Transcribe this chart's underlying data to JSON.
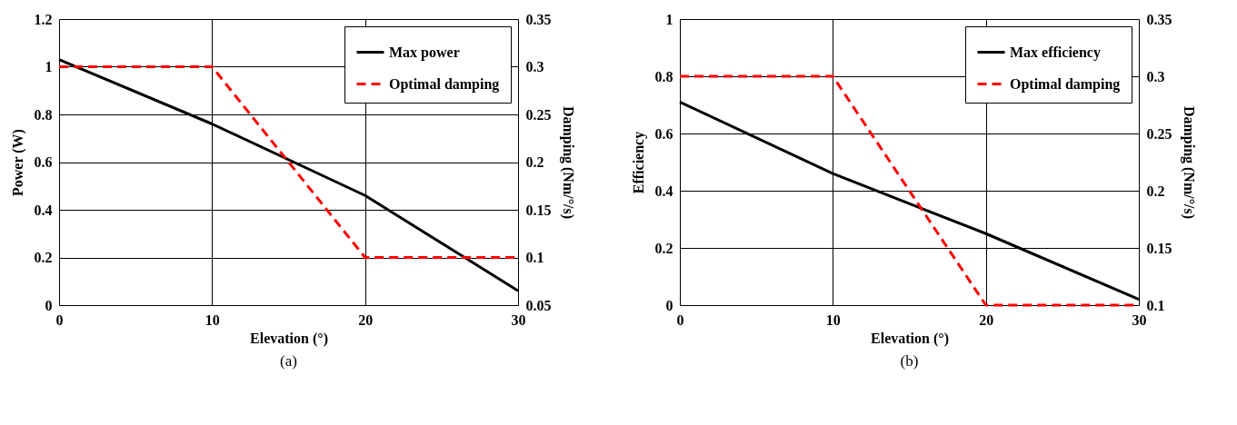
{
  "chart_data": [
    {
      "type": "line",
      "xlabel": "Elevation (°)",
      "ylabel": "Power (W)",
      "y2label": "Damping (Nm/°/s)",
      "annotations": [
        "(a)"
      ],
      "x": [
        0,
        10,
        20,
        30
      ],
      "xlim": [
        0,
        30
      ],
      "xticks": [
        0,
        10,
        20,
        30
      ],
      "ylim": [
        0,
        1.2
      ],
      "yticks": [
        0,
        0.2,
        0.4,
        0.6,
        0.8,
        1,
        1.2
      ],
      "y2lim": [
        0.05,
        0.35
      ],
      "y2ticks": [
        0.05,
        0.1,
        0.15,
        0.2,
        0.25,
        0.3,
        0.35
      ],
      "grid": true,
      "legend": "top right",
      "marker": "none",
      "series": [
        {
          "name": "Max power",
          "color": "#000000",
          "line_style": "solid",
          "values": [
            1.03,
            0.76,
            0.46,
            0.06
          ]
        },
        {
          "name": "Optimal damping",
          "color": "#ff0000",
          "line_style": "dashed",
          "axis": "y2",
          "values": [
            0.3,
            0.3,
            0.1,
            0.1
          ]
        }
      ]
    },
    {
      "type": "line",
      "xlabel": "Elevation (°)",
      "ylabel": "Efficiency",
      "y2label": "Damping (Nm/°/s)",
      "annotations": [
        "(b)"
      ],
      "x": [
        0,
        10,
        20,
        30
      ],
      "xlim": [
        0,
        30
      ],
      "xticks": [
        0,
        10,
        20,
        30
      ],
      "ylim": [
        0,
        1
      ],
      "yticks": [
        0,
        0.2,
        0.4,
        0.6,
        0.8,
        1
      ],
      "y2lim": [
        0.1,
        0.35
      ],
      "y2ticks": [
        0.1,
        0.15,
        0.2,
        0.25,
        0.3,
        0.35
      ],
      "grid": true,
      "legend": "top right",
      "marker": "none",
      "series": [
        {
          "name": "Max efficiency",
          "color": "#000000",
          "line_style": "solid",
          "values": [
            0.71,
            0.46,
            0.25,
            0.02
          ]
        },
        {
          "name": "Optimal damping",
          "color": "#ff0000",
          "line_style": "dashed",
          "axis": "y2",
          "values": [
            0.3,
            0.3,
            0.1,
            0.1
          ]
        }
      ]
    }
  ]
}
